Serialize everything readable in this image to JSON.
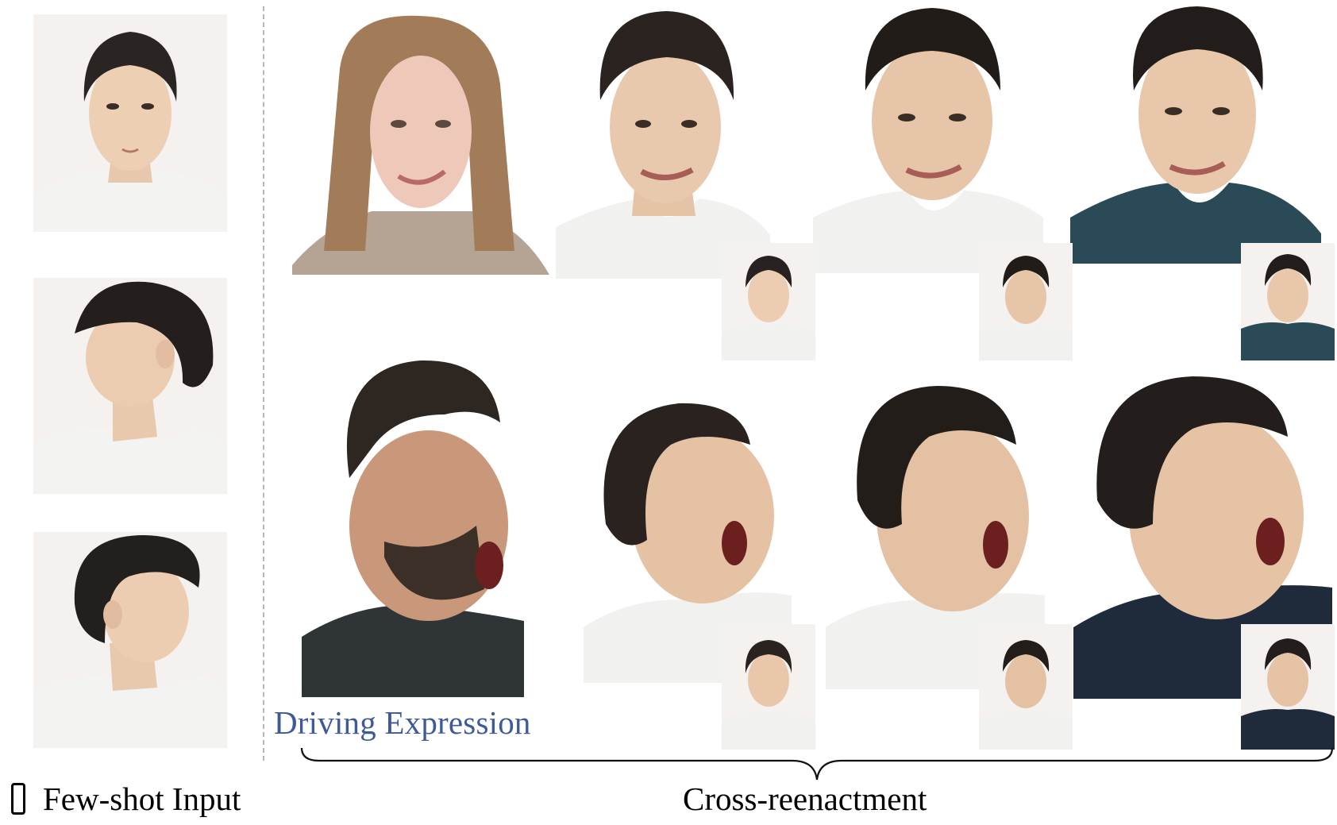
{
  "captions": {
    "driving": "Driving Expression",
    "few_shot": "Few-shot Input",
    "cross": "Cross-reenactment"
  },
  "icons": {
    "few_shot": "phone-icon"
  },
  "colors": {
    "driving_label": "#3d5a99",
    "divider": "#b7b7b7"
  }
}
